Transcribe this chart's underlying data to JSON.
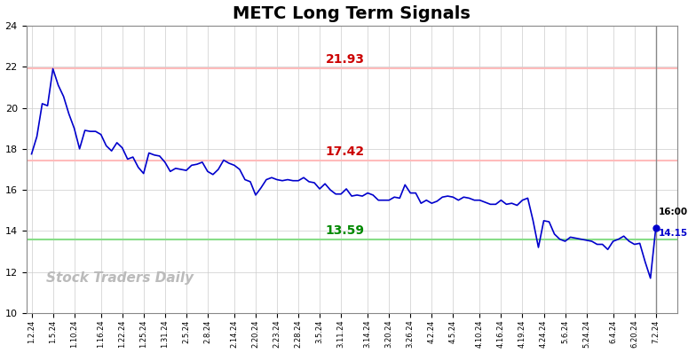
{
  "title": "METC Long Term Signals",
  "watermark": "Stock Traders Daily",
  "ylim": [
    10,
    24
  ],
  "yticks": [
    10,
    12,
    14,
    16,
    18,
    20,
    22,
    24
  ],
  "line_color": "#0000cc",
  "line_width": 1.2,
  "hline_upper": 21.93,
  "hline_upper_color": "#ffbbbb",
  "hline_upper_label_color": "#cc0000",
  "hline_middle": 17.42,
  "hline_middle_color": "#ffbbbb",
  "hline_middle_label_color": "#cc0000",
  "hline_lower": 13.59,
  "hline_lower_color": "#88dd88",
  "hline_lower_label_color": "#008800",
  "end_label_time": "16:00",
  "end_label_price": "14.15",
  "end_dot_color": "#0000cc",
  "background_color": "#ffffff",
  "grid_color": "#cccccc",
  "title_fontsize": 14,
  "watermark_color": "#bbbbbb",
  "watermark_fontsize": 11,
  "x_labels": [
    "1.2.24",
    "1.5.24",
    "1.10.24",
    "1.16.24",
    "1.22.24",
    "1.25.24",
    "1.31.24",
    "2.5.24",
    "2.8.24",
    "2.14.24",
    "2.20.24",
    "2.23.24",
    "2.28.24",
    "3.5.24",
    "3.11.24",
    "3.14.24",
    "3.20.24",
    "3.26.24",
    "4.2.24",
    "4.5.24",
    "4.10.24",
    "4.16.24",
    "4.19.24",
    "4.24.24",
    "5.6.24",
    "5.24.24",
    "6.4.24",
    "6.20.24",
    "7.2.24"
  ],
  "y_values": [
    17.75,
    18.6,
    20.2,
    20.1,
    21.9,
    21.1,
    20.55,
    19.7,
    19.0,
    18.0,
    18.9,
    18.85,
    18.85,
    18.7,
    18.15,
    17.9,
    18.3,
    18.05,
    17.5,
    17.6,
    17.1,
    16.8,
    17.8,
    17.7,
    17.65,
    17.35,
    16.9,
    17.05,
    17.0,
    16.95,
    17.2,
    17.25,
    17.35,
    16.9,
    16.75,
    17.0,
    17.45,
    17.3,
    17.2,
    17.0,
    16.5,
    16.4,
    15.75,
    16.1,
    16.5,
    16.6,
    16.5,
    16.45,
    16.5,
    16.45,
    16.45,
    16.6,
    16.4,
    16.35,
    16.05,
    16.3,
    16.0,
    15.8,
    15.8,
    16.05,
    15.7,
    15.75,
    15.7,
    15.85,
    15.75,
    15.5,
    15.5,
    15.5,
    15.65,
    15.6,
    16.25,
    15.85,
    15.85,
    15.35,
    15.5,
    15.35,
    15.45,
    15.65,
    15.7,
    15.65,
    15.5,
    15.65,
    15.6,
    15.5,
    15.5,
    15.4,
    15.3,
    15.3,
    15.5,
    15.3,
    15.35,
    15.25,
    15.5,
    15.6,
    14.5,
    13.2,
    14.5,
    14.45,
    13.85,
    13.6,
    13.5,
    13.7,
    13.65,
    13.6,
    13.55,
    13.5,
    13.35,
    13.35,
    13.1,
    13.5,
    13.6,
    13.75,
    13.5,
    13.35,
    13.4,
    12.5,
    11.7,
    14.15
  ]
}
